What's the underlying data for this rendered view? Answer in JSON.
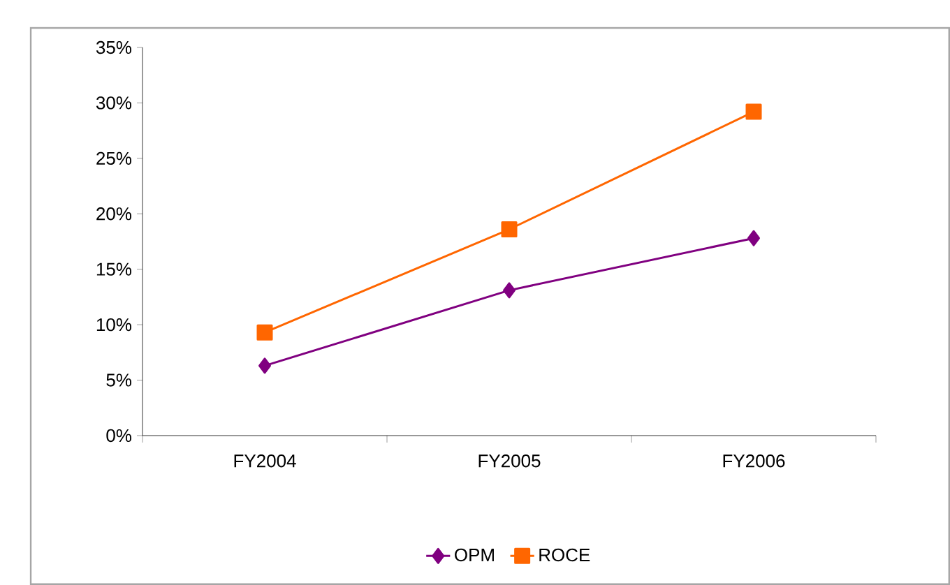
{
  "chart_data": {
    "type": "line",
    "categories": [
      "FY2004",
      "FY2005",
      "FY2006"
    ],
    "series": [
      {
        "name": "OPM",
        "color": "#800080",
        "marker": "diamond",
        "values": [
          6.3,
          13.1,
          17.8
        ]
      },
      {
        "name": "ROCE",
        "color": "#ff6600",
        "marker": "square",
        "values": [
          9.3,
          18.6,
          29.2
        ]
      }
    ],
    "ylim": [
      0,
      35
    ],
    "yticks": [
      {
        "value": 0,
        "label": "0%"
      },
      {
        "value": 5,
        "label": "5%"
      },
      {
        "value": 10,
        "label": "10%"
      },
      {
        "value": 15,
        "label": "15%"
      },
      {
        "value": 20,
        "label": "20%"
      },
      {
        "value": 25,
        "label": "25%"
      },
      {
        "value": 30,
        "label": "30%"
      },
      {
        "value": 35,
        "label": "35%"
      }
    ],
    "grid": false,
    "legend": "bottom",
    "line_style": "solid"
  }
}
